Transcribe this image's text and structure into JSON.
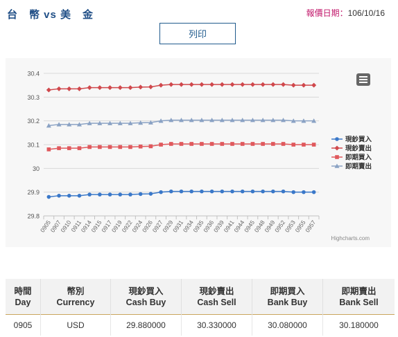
{
  "header": {
    "title": "台　幣 vs 美　金",
    "date_label": "報價日期：",
    "date_value": "106/10/16"
  },
  "toolbar": {
    "print_label": "列印"
  },
  "chart_data": {
    "type": "line",
    "categories": [
      "0905",
      "0907",
      "0910",
      "0911",
      "0914",
      "0915",
      "0917",
      "0919",
      "0922",
      "0924",
      "0926",
      "0927",
      "0929",
      "0931",
      "0934",
      "0935",
      "0936",
      "0939",
      "0941",
      "0944",
      "0945",
      "0948",
      "0949",
      "0952",
      "0953",
      "0955",
      "0957"
    ],
    "ylim": [
      29.8,
      30.4
    ],
    "yticks": [
      "29.8",
      "29.9",
      "30",
      "30.1",
      "30.2",
      "30.3",
      "30.4"
    ],
    "series": [
      {
        "name": "現鈔買入",
        "color": "#3a78c9",
        "marker": "circle",
        "values": [
          29.88,
          29.885,
          29.885,
          29.885,
          29.89,
          29.89,
          29.89,
          29.89,
          29.89,
          29.892,
          29.893,
          29.9,
          29.903,
          29.903,
          29.903,
          29.903,
          29.903,
          29.903,
          29.903,
          29.903,
          29.903,
          29.903,
          29.903,
          29.903,
          29.9,
          29.9,
          29.9
        ]
      },
      {
        "name": "現鈔賣出",
        "color": "#d0484c",
        "marker": "diamond",
        "values": [
          30.33,
          30.335,
          30.335,
          30.335,
          30.34,
          30.34,
          30.34,
          30.34,
          30.34,
          30.342,
          30.343,
          30.35,
          30.353,
          30.353,
          30.353,
          30.353,
          30.353,
          30.353,
          30.353,
          30.353,
          30.353,
          30.353,
          30.353,
          30.353,
          30.35,
          30.35,
          30.35
        ]
      },
      {
        "name": "即期買入",
        "color": "#e0585c",
        "marker": "square",
        "values": [
          30.08,
          30.085,
          30.085,
          30.085,
          30.09,
          30.09,
          30.09,
          30.09,
          30.09,
          30.092,
          30.093,
          30.1,
          30.103,
          30.103,
          30.103,
          30.103,
          30.103,
          30.103,
          30.103,
          30.103,
          30.103,
          30.103,
          30.103,
          30.103,
          30.1,
          30.1,
          30.1
        ]
      },
      {
        "name": "即期賣出",
        "color": "#8aa2c4",
        "marker": "triangle",
        "values": [
          30.18,
          30.185,
          30.185,
          30.185,
          30.19,
          30.19,
          30.19,
          30.19,
          30.19,
          30.192,
          30.193,
          30.2,
          30.203,
          30.203,
          30.203,
          30.203,
          30.203,
          30.203,
          30.203,
          30.203,
          30.203,
          30.203,
          30.203,
          30.203,
          30.2,
          30.2,
          30.2
        ]
      }
    ],
    "legend_position": "right",
    "credit": "Highcharts.com",
    "grid": true
  },
  "table": {
    "headers": [
      {
        "zh": "時間",
        "en": "Day"
      },
      {
        "zh": "幣別",
        "en": "Currency"
      },
      {
        "zh": "現鈔買入",
        "en": "Cash Buy"
      },
      {
        "zh": "現鈔賣出",
        "en": "Cash Sell"
      },
      {
        "zh": "即期買入",
        "en": "Bank Buy"
      },
      {
        "zh": "即期賣出",
        "en": "Bank Sell"
      }
    ],
    "rows": [
      [
        "0905",
        "USD",
        "29.880000",
        "30.330000",
        "30.080000",
        "30.180000"
      ]
    ]
  }
}
